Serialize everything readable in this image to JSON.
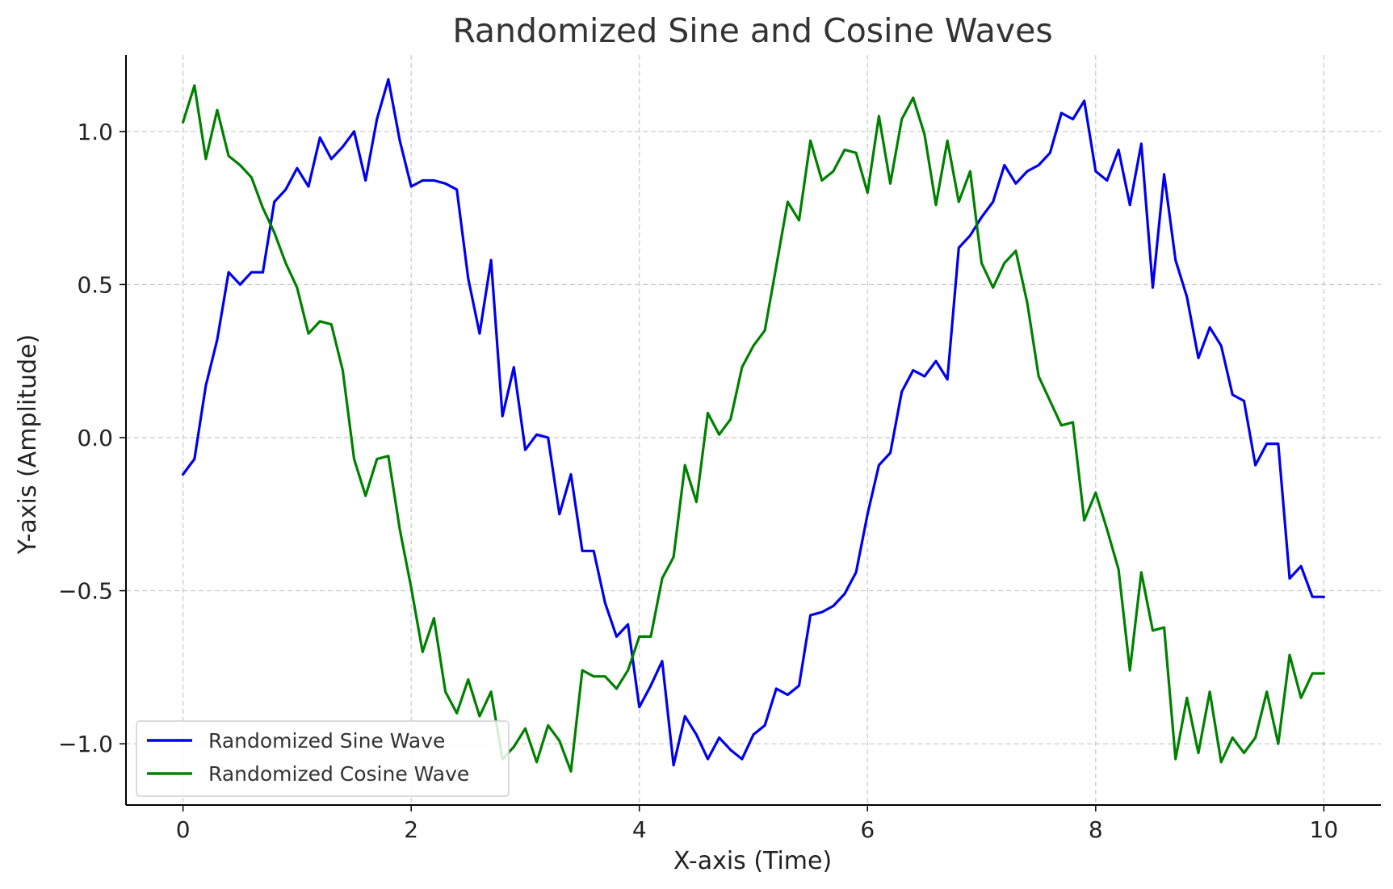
{
  "chart_data": {
    "type": "line",
    "title": "Randomized Sine and Cosine Waves",
    "xlabel": "X-axis (Time)",
    "ylabel": "Y-axis (Amplitude)",
    "xlim": [
      -0.5,
      10.5
    ],
    "ylim": [
      -1.2,
      1.25
    ],
    "xticks": [
      0,
      2,
      4,
      6,
      8,
      10
    ],
    "xtick_labels": [
      "0",
      "2",
      "4",
      "6",
      "8",
      "10"
    ],
    "yticks": [
      -1.0,
      -0.5,
      0.0,
      0.5,
      1.0
    ],
    "ytick_labels": [
      "−1.0",
      "−0.5",
      "0.0",
      "0.5",
      "1.0"
    ],
    "grid": true,
    "legend_position": "bottom-left",
    "x": [
      0,
      0.1,
      0.2,
      0.3,
      0.4,
      0.5,
      0.6,
      0.7,
      0.8,
      0.9,
      1.0,
      1.1,
      1.2,
      1.3,
      1.4,
      1.5,
      1.6,
      1.7,
      1.8,
      1.9,
      2.0,
      2.1,
      2.2,
      2.3,
      2.4,
      2.5,
      2.6,
      2.7,
      2.8,
      2.9,
      3.0,
      3.1,
      3.2,
      3.3,
      3.4,
      3.5,
      3.6,
      3.7,
      3.8,
      3.9,
      4.0,
      4.1,
      4.2,
      4.3,
      4.4,
      4.5,
      4.6,
      4.7,
      4.8,
      4.9,
      5.0,
      5.1,
      5.2,
      5.3,
      5.4,
      5.5,
      5.6,
      5.7,
      5.8,
      5.9,
      6.0,
      6.1,
      6.2,
      6.3,
      6.4,
      6.5,
      6.6,
      6.7,
      6.8,
      6.9,
      7.0,
      7.1,
      7.2,
      7.3,
      7.4,
      7.5,
      7.6,
      7.7,
      7.8,
      7.9,
      8.0,
      8.1,
      8.2,
      8.3,
      8.4,
      8.5,
      8.6,
      8.7,
      8.8,
      8.9,
      9.0,
      9.1,
      9.2,
      9.3,
      9.4,
      9.5,
      9.6,
      9.7,
      9.8,
      9.9,
      10.0
    ],
    "series": [
      {
        "name": "Randomized Sine Wave",
        "color": "#0000ee",
        "values": [
          -0.12,
          -0.07,
          0.17,
          0.32,
          0.54,
          0.5,
          0.54,
          0.54,
          0.77,
          0.81,
          0.88,
          0.82,
          0.98,
          0.91,
          0.95,
          1.0,
          0.84,
          1.04,
          1.17,
          0.97,
          0.82,
          0.84,
          0.84,
          0.83,
          0.81,
          0.52,
          0.34,
          0.58,
          0.07,
          0.23,
          -0.04,
          0.01,
          0.0,
          -0.25,
          -0.12,
          -0.37,
          -0.37,
          -0.54,
          -0.65,
          -0.61,
          -0.88,
          -0.81,
          -0.73,
          -1.07,
          -0.91,
          -0.97,
          -1.05,
          -0.98,
          -1.02,
          -1.05,
          -0.97,
          -0.94,
          -0.82,
          -0.84,
          -0.81,
          -0.58,
          -0.57,
          -0.55,
          -0.51,
          -0.44,
          -0.25,
          -0.09,
          -0.05,
          0.15,
          0.22,
          0.2,
          0.25,
          0.19,
          0.62,
          0.66,
          0.72,
          0.77,
          0.89,
          0.83,
          0.87,
          0.89,
          0.93,
          1.06,
          1.04,
          1.1,
          0.87,
          0.84,
          0.94,
          0.76,
          0.96,
          0.49,
          0.86,
          0.58,
          0.46,
          0.26,
          0.36,
          0.3,
          0.14,
          0.12,
          -0.09,
          -0.02,
          -0.02,
          -0.46,
          -0.42,
          -0.52,
          -0.52
        ]
      },
      {
        "name": "Randomized Cosine Wave",
        "color": "#008000",
        "values": [
          1.03,
          1.15,
          0.91,
          1.07,
          0.92,
          0.89,
          0.85,
          0.75,
          0.67,
          0.57,
          0.49,
          0.34,
          0.38,
          0.37,
          0.22,
          -0.07,
          -0.19,
          -0.07,
          -0.06,
          -0.3,
          -0.49,
          -0.7,
          -0.59,
          -0.83,
          -0.9,
          -0.79,
          -0.91,
          -0.83,
          -1.05,
          -1.01,
          -0.95,
          -1.06,
          -0.94,
          -0.99,
          -1.09,
          -0.76,
          -0.78,
          -0.78,
          -0.82,
          -0.76,
          -0.65,
          -0.65,
          -0.46,
          -0.39,
          -0.09,
          -0.21,
          0.08,
          0.01,
          0.06,
          0.23,
          0.3,
          0.35,
          0.56,
          0.77,
          0.71,
          0.97,
          0.84,
          0.87,
          0.94,
          0.93,
          0.8,
          1.05,
          0.83,
          1.04,
          1.11,
          0.99,
          0.76,
          0.97,
          0.77,
          0.87,
          0.57,
          0.49,
          0.57,
          0.61,
          0.44,
          0.2,
          0.12,
          0.04,
          0.05,
          -0.27,
          -0.18,
          -0.3,
          -0.43,
          -0.76,
          -0.44,
          -0.63,
          -0.62,
          -1.05,
          -0.85,
          -1.03,
          -0.83,
          -1.06,
          -0.98,
          -1.03,
          -0.98,
          -0.83,
          -1.0,
          -0.71,
          -0.85,
          -0.77,
          -0.77
        ]
      }
    ]
  }
}
